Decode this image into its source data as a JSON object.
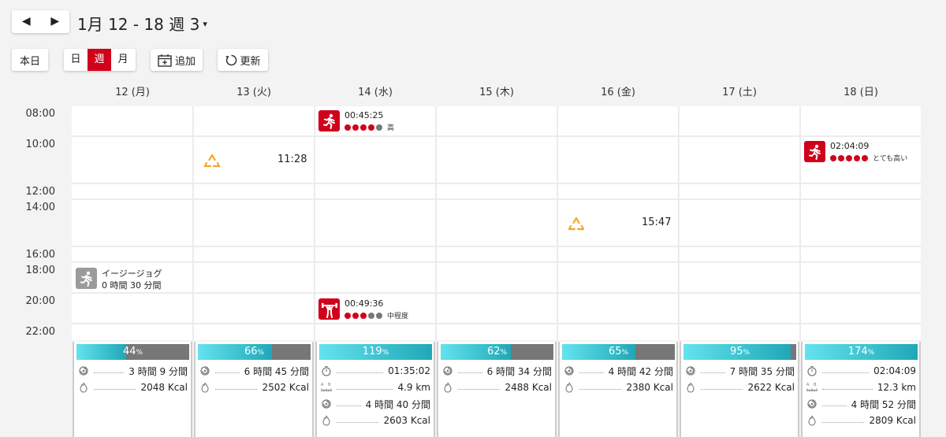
{
  "header": {
    "prev_arrow": "◀",
    "next_arrow": "▶",
    "title": "1月 12 - 18 週 3",
    "caret": "▾"
  },
  "toolbar": {
    "today": "本日",
    "view_day": "日",
    "view_week": "週",
    "view_month": "月",
    "add": "追加",
    "refresh": "更新"
  },
  "days": [
    "12 (月)",
    "13 (火)",
    "14 (水)",
    "15 (木)",
    "16 (金)",
    "17 (土)",
    "18 (日)"
  ],
  "times": [
    "08:00",
    "10:00",
    "12:00",
    "14:00",
    "16:00",
    "18:00",
    "20:00",
    "22:00"
  ],
  "events": {
    "wed_run": {
      "duration": "00:45:25",
      "intensity": "高",
      "level": 4
    },
    "sun_run": {
      "duration": "02:04:09",
      "intensity": "とても高い",
      "level": 5
    },
    "mon_plan": {
      "name": "イージージョグ",
      "duration": "0 時間 30 分間"
    },
    "wed_strength": {
      "duration": "00:49:36",
      "intensity": "中程度",
      "level": 3
    },
    "tue_alert": {
      "time": "11:28"
    },
    "fri_alert": {
      "time": "15:47"
    }
  },
  "summaries": [
    {
      "pct": "44",
      "pct_unit": "%",
      "progress": 0.44,
      "activity": "3 時間 9 分間",
      "calories": "2048 Kcal"
    },
    {
      "pct": "66",
      "pct_unit": "%",
      "progress": 0.66,
      "activity": "6 時間 45 分間",
      "calories": "2502 Kcal"
    },
    {
      "pct": "119",
      "pct_unit": "%",
      "progress": 1.0,
      "time": "01:35:02",
      "distance": "4.9 km",
      "activity": "4 時間 40 分間",
      "calories": "2603 Kcal"
    },
    {
      "pct": "62",
      "pct_unit": "%",
      "progress": 0.62,
      "activity": "6 時間 34 分間",
      "calories": "2488 Kcal"
    },
    {
      "pct": "65",
      "pct_unit": "%",
      "progress": 0.65,
      "activity": "4 時間 42 分間",
      "calories": "2380 Kcal"
    },
    {
      "pct": "95",
      "pct_unit": "%",
      "progress": 0.95,
      "activity": "7 時間 35 分間",
      "calories": "2622 Kcal"
    },
    {
      "pct": "174",
      "pct_unit": "%",
      "progress": 1.0,
      "time": "02:04:09",
      "distance": "12.3 km",
      "activity": "4 時間 52 分間",
      "calories": "2809 Kcal"
    }
  ],
  "colors": {
    "accent": "#d0021b",
    "progress": "#20a7b8",
    "warning": "#f5a623"
  },
  "icons": {
    "run": "running-person-icon",
    "strength": "weightlifting-icon",
    "alert": "recovery-warning-icon",
    "activity": "activity-icon",
    "calories": "flame-icon",
    "timer": "stopwatch-icon",
    "distance": "distance-icon"
  }
}
